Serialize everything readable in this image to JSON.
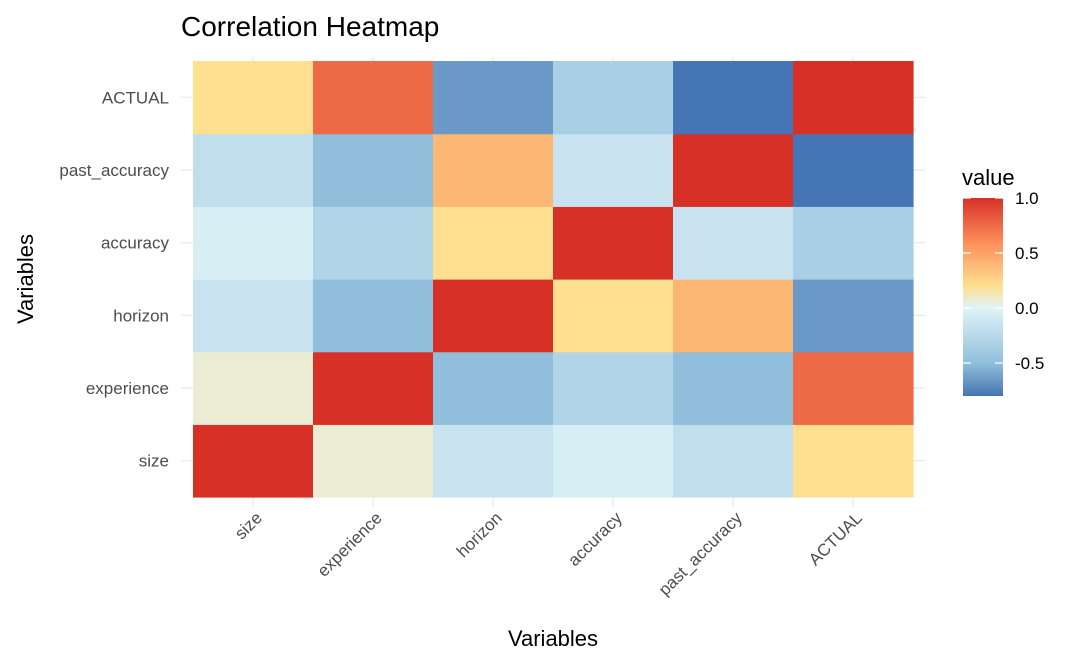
{
  "chart_data": {
    "type": "heatmap",
    "title": "Correlation Heatmap",
    "xlabel": "Variables",
    "ylabel": "Variables",
    "x_categories": [
      "size",
      "experience",
      "horizon",
      "accuracy",
      "past_accuracy",
      "ACTUAL"
    ],
    "y_categories": [
      "size",
      "experience",
      "horizon",
      "accuracy",
      "past_accuracy",
      "ACTUAL"
    ],
    "values": [
      [
        1.0,
        0.07,
        -0.15,
        -0.05,
        -0.2,
        0.2
      ],
      [
        0.07,
        1.0,
        -0.5,
        -0.3,
        -0.5,
        0.75
      ],
      [
        -0.15,
        -0.5,
        1.0,
        0.2,
        0.4,
        -0.65
      ],
      [
        -0.05,
        -0.3,
        0.2,
        1.0,
        -0.15,
        -0.35
      ],
      [
        -0.2,
        -0.5,
        0.4,
        -0.15,
        1.0,
        -0.8
      ],
      [
        0.2,
        0.75,
        -0.65,
        -0.35,
        -0.8,
        1.0
      ]
    ],
    "legend": {
      "title": "value",
      "ticks": [
        1.0,
        0.5,
        0.0,
        -0.5
      ],
      "tick_labels": [
        "1.0",
        "0.5",
        "0.0",
        "-0.5"
      ],
      "range": [
        -0.8,
        1.0
      ],
      "placement": "right"
    },
    "colors": {
      "low": "#4575b4",
      "mid": "#ffffbf",
      "high": "#d73027",
      "stops": [
        "#4575b4",
        "#91bfdb",
        "#e0f3f8",
        "#fee090",
        "#fc8d59",
        "#d73027"
      ]
    },
    "grid": true
  }
}
